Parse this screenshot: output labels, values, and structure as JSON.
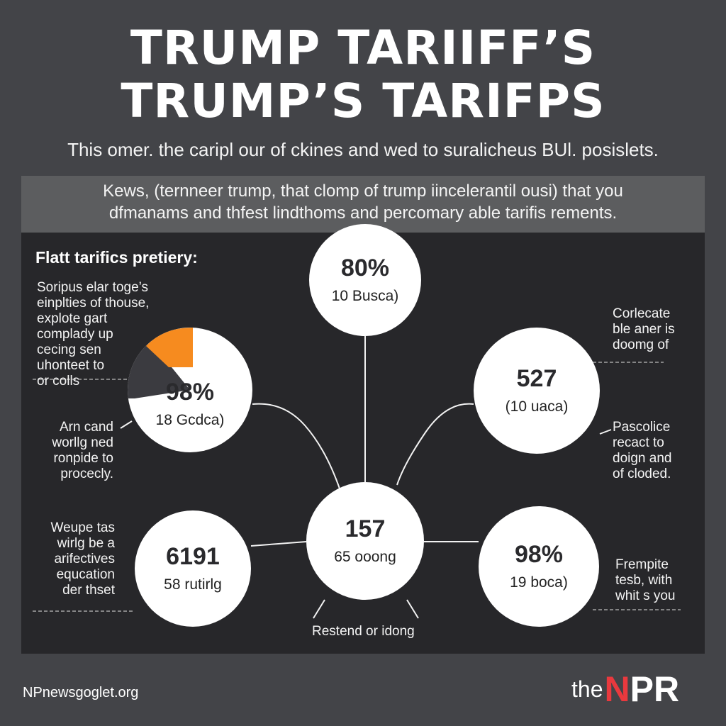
{
  "header": {
    "title_line1": "TRUMP TARIIFF’S",
    "title_line2": "TRUMP’S TARIFPS",
    "subtitle": "This omer. the caripl our of ckines and wed to suralicheus BUl. posislets.",
    "lede_line1": "Kews, (ternneer trump, that clomp of trump iincelerantil ousi) that you",
    "lede_line2": "dfmanams and thfest lindthoms and percomary able tarifis rements."
  },
  "panel": {
    "heading": "Flatt tarifics pretiery:",
    "left_top_note": [
      "Soripus elar toge’s",
      "einplties of thouse,",
      "explote gart",
      "complady up",
      "cecing sen",
      "uhonteet to",
      "or colls"
    ],
    "left_mid_note": [
      "Arn cand",
      "worllg ned",
      "ronpide to",
      "procecly."
    ],
    "left_bottom_note": [
      "Weupe tas",
      "wirlg be a",
      "arifectives",
      "equcation",
      "der thset"
    ],
    "right_top_note": [
      "Corlecate",
      "ble aner is",
      "doomg of"
    ],
    "right_mid_note": [
      "Pascolice",
      "recact to",
      "doign and",
      "of cloded."
    ],
    "right_bottom_note": [
      "Frempite",
      "tesb, with",
      "whit s you"
    ],
    "bottom_caption": "Restend or idong"
  },
  "nodes": {
    "top": {
      "value": "80%",
      "label": "10 Busca)"
    },
    "left": {
      "value": "98%",
      "label": "18 Gcdca)"
    },
    "right": {
      "value": "527",
      "label": "(10 uaca)"
    },
    "center": {
      "value": "157",
      "label": "65 ooong"
    },
    "bottom_left": {
      "value": "6191",
      "label": "58 rutirlg"
    },
    "bottom_right": {
      "value": "98%",
      "label": "19 boca)"
    }
  },
  "colors": {
    "background": "#434448",
    "panel": "#27272a",
    "accent": "#f68b1f",
    "pie_dark": "#3b3b40",
    "brand_red": "#e9393e"
  },
  "footer": {
    "url": "NPnewsgoglet.org",
    "logo_the": "the",
    "logo_n": "N",
    "logo_pr": "PR"
  }
}
